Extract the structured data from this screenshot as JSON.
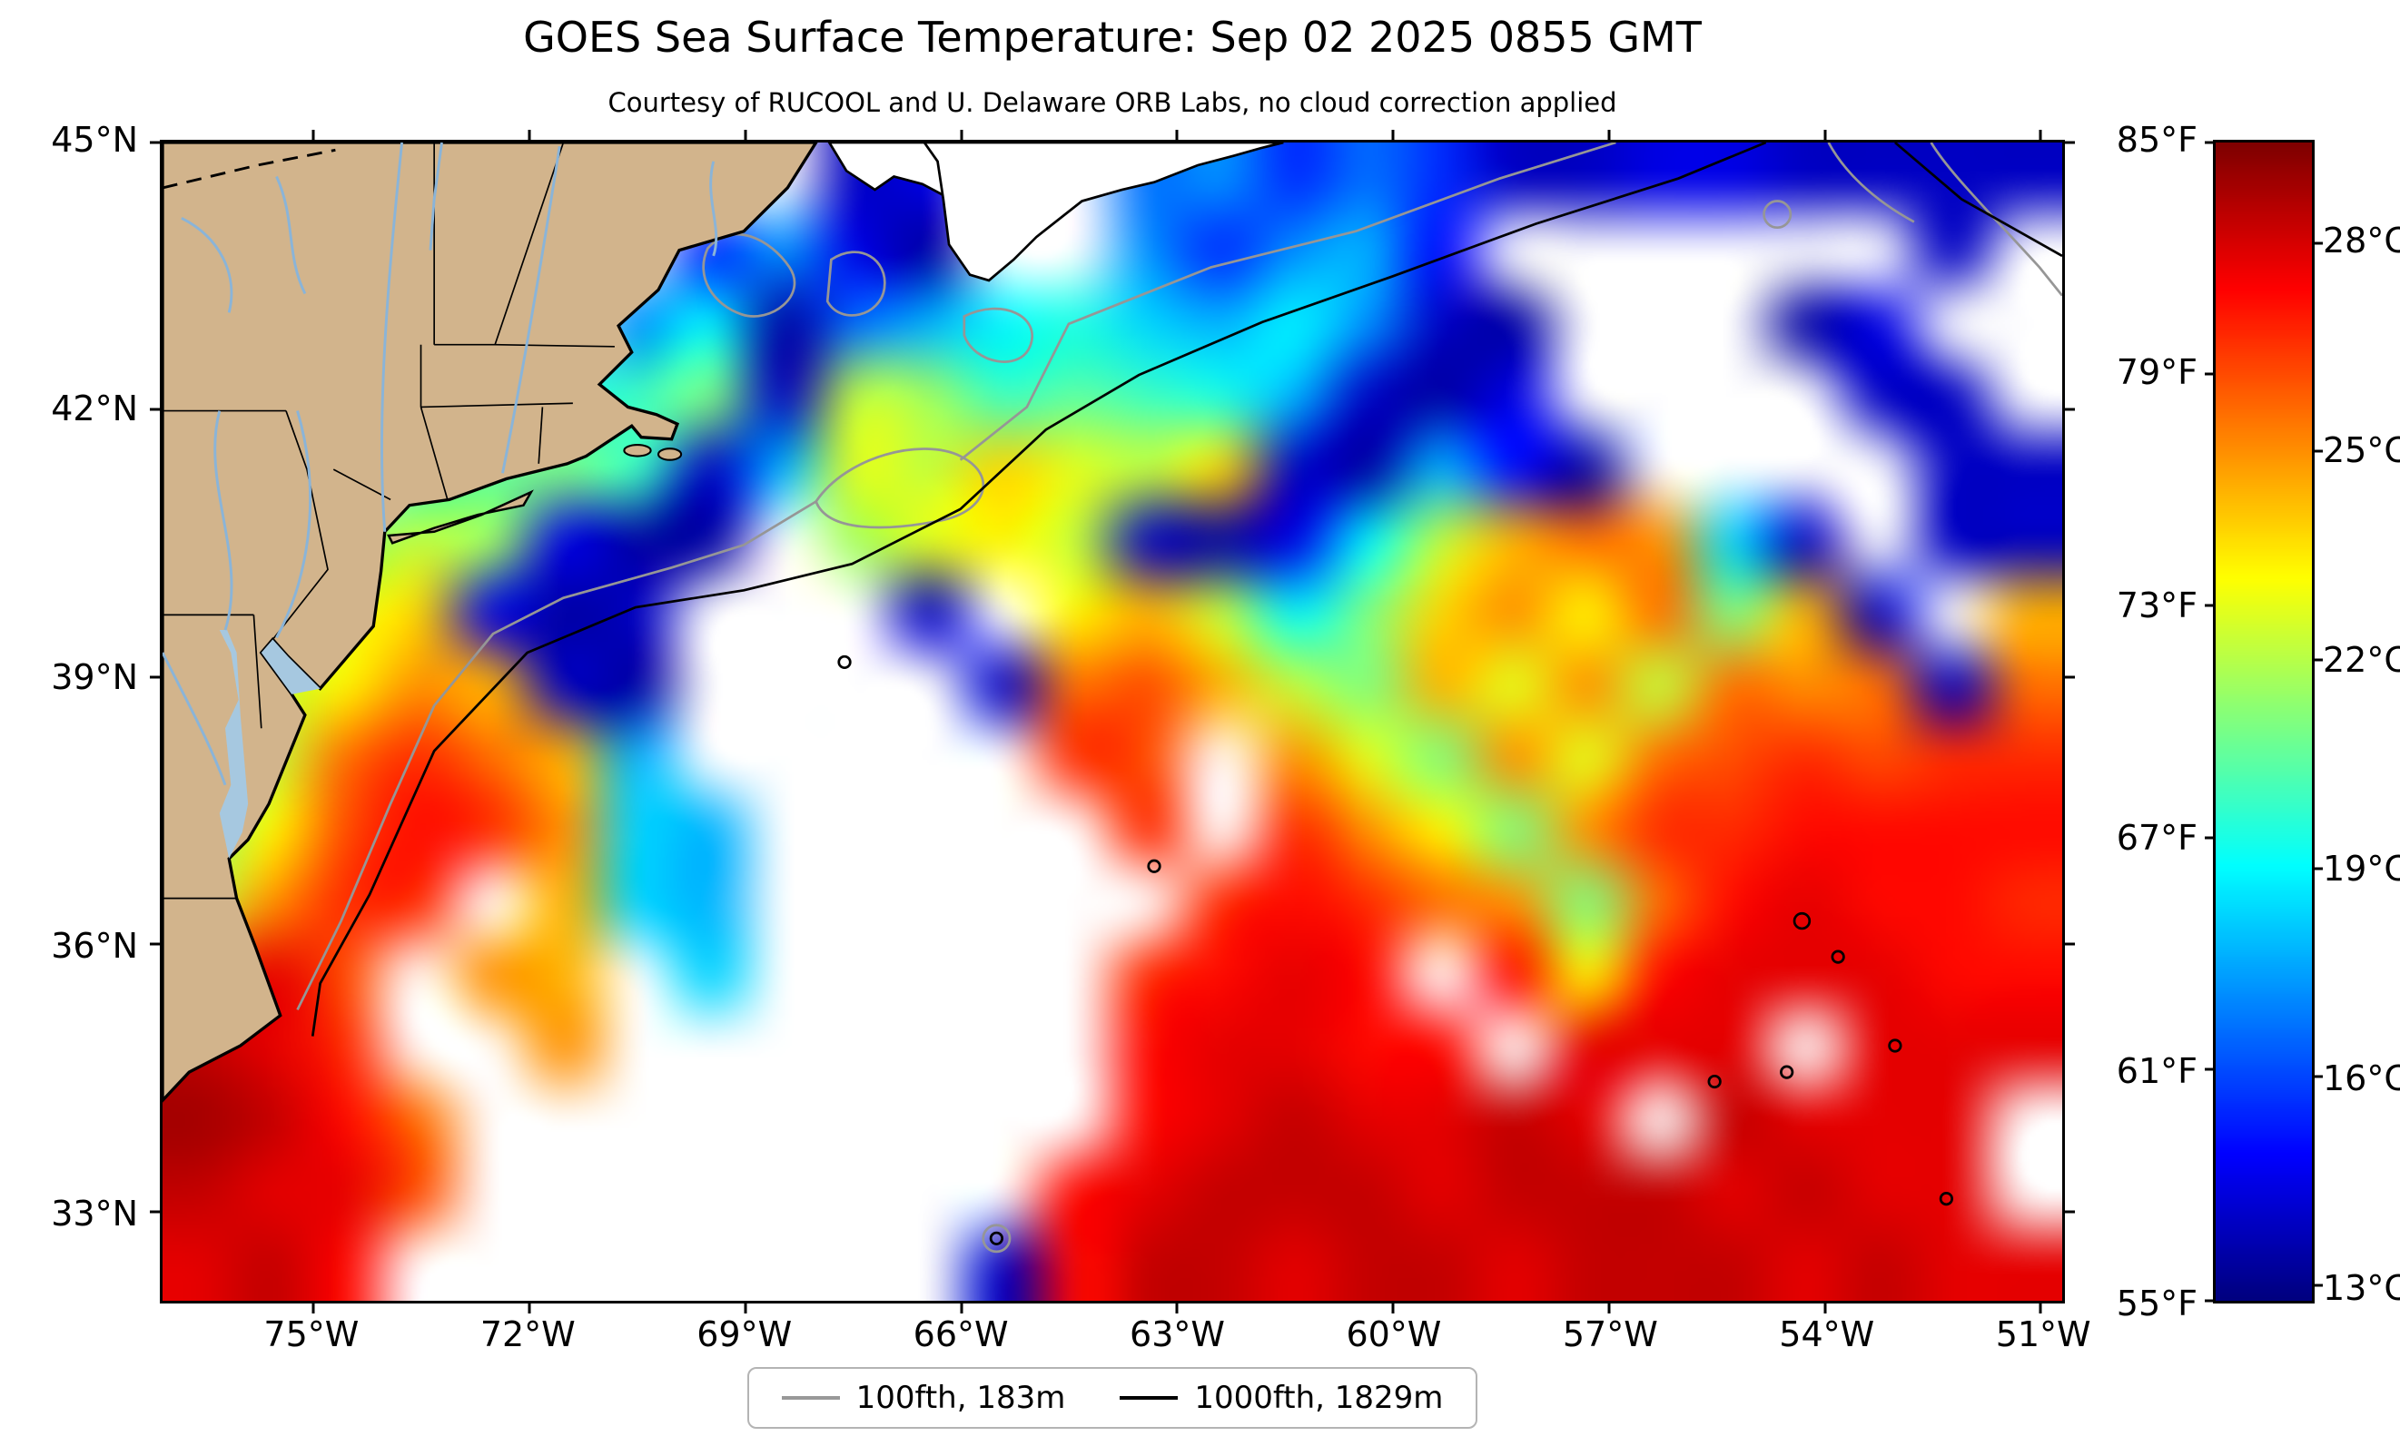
{
  "header": {
    "title": "GOES Sea Surface Temperature: Sep 02 2025 0855 GMT",
    "subtitle": "Courtesy of RUCOOL and U. Delaware ORB Labs, no cloud correction applied"
  },
  "chart_data": {
    "type": "heatmap",
    "title": "GOES Sea Surface Temperature: Sep 02 2025 0855 GMT",
    "subtitle": "Courtesy of RUCOOL and U. Delaware ORB Labs, no cloud correction applied",
    "colormap": "jet",
    "no_data_color": "#ffffff",
    "land_color": "#d2b48c",
    "x_axis": {
      "unit": "°W",
      "left_value": 77.1,
      "right_value": 50.7,
      "ticks": [
        {
          "label": "75°W",
          "value": 75
        },
        {
          "label": "72°W",
          "value": 72
        },
        {
          "label": "69°W",
          "value": 69
        },
        {
          "label": "66°W",
          "value": 66
        },
        {
          "label": "63°W",
          "value": 63
        },
        {
          "label": "60°W",
          "value": 60
        },
        {
          "label": "57°W",
          "value": 57
        },
        {
          "label": "54°W",
          "value": 54
        },
        {
          "label": "51°W",
          "value": 51
        }
      ]
    },
    "y_axis": {
      "unit": "°N",
      "top_value": 45.0,
      "bottom_value": 32.0,
      "ticks": [
        {
          "label": "45°N",
          "value": 45
        },
        {
          "label": "42°N",
          "value": 42
        },
        {
          "label": "39°N",
          "value": 39
        },
        {
          "label": "36°N",
          "value": 36
        },
        {
          "label": "33°N",
          "value": 33
        }
      ]
    },
    "colorbar": {
      "range_f": [
        55,
        85
      ],
      "ticks_f": [
        {
          "label": "85°F",
          "value": 85
        },
        {
          "label": "79°F",
          "value": 79
        },
        {
          "label": "73°F",
          "value": 73
        },
        {
          "label": "67°F",
          "value": 67
        },
        {
          "label": "61°F",
          "value": 61
        },
        {
          "label": "55°F",
          "value": 55
        }
      ],
      "ticks_c": [
        {
          "label": "28°C",
          "value": 28
        },
        {
          "label": "25°C",
          "value": 25
        },
        {
          "label": "22°C",
          "value": 22
        },
        {
          "label": "19°C",
          "value": 19
        },
        {
          "label": "16°C",
          "value": 16
        },
        {
          "label": "13°C",
          "value": 13
        }
      ]
    },
    "legend": [
      {
        "label": "100fth, 183m",
        "color": "#999999"
      },
      {
        "label": "1000fth, 1829m",
        "color": "#000000"
      }
    ],
    "grid": {
      "lon_west": 77.1,
      "lon_east": 50.7,
      "lat_north": 45.0,
      "lat_south": 32.0,
      "units": "F",
      "values": [
        [
          null,
          null,
          null,
          null,
          null,
          null,
          null,
          null,
          null,
          57,
          58,
          null,
          null,
          62,
          63,
          60,
          62,
          60,
          57,
          57,
          58,
          58,
          57,
          57,
          57,
          57
        ],
        [
          null,
          null,
          null,
          null,
          null,
          null,
          null,
          60,
          63,
          58,
          56,
          null,
          null,
          63,
          60,
          63,
          64,
          59,
          null,
          null,
          null,
          null,
          null,
          null,
          57,
          null
        ],
        [
          null,
          null,
          null,
          null,
          null,
          null,
          63,
          66,
          56,
          62,
          64,
          66,
          67,
          65,
          64,
          66,
          63,
          57,
          56,
          null,
          null,
          null,
          56,
          58,
          null,
          null
        ],
        [
          null,
          null,
          null,
          null,
          null,
          67,
          68,
          70,
          57,
          72,
          71,
          68,
          69,
          68,
          67,
          64,
          57,
          56,
          58,
          null,
          null,
          null,
          null,
          57,
          57,
          null
        ],
        [
          null,
          null,
          null,
          68,
          69,
          70,
          68,
          57,
          64,
          73,
          72,
          75,
          73,
          72,
          75,
          57,
          56,
          64,
          59,
          56,
          null,
          null,
          null,
          null,
          57,
          57
        ],
        [
          null,
          null,
          70,
          72,
          71,
          58,
          56,
          56,
          null,
          71,
          73,
          74,
          72,
          57,
          56,
          58,
          66,
          72,
          76,
          78,
          77,
          65,
          57,
          null,
          57,
          57
        ],
        [
          null,
          71,
          73,
          75,
          58,
          56,
          57,
          null,
          null,
          null,
          57,
          null,
          74,
          76,
          72,
          66,
          70,
          75,
          77,
          74,
          78,
          70,
          76,
          57,
          null,
          76
        ],
        [
          null,
          72,
          74,
          77,
          76,
          57,
          56,
          null,
          null,
          null,
          null,
          57,
          78,
          79,
          76,
          72,
          70,
          76,
          73,
          77,
          72,
          78,
          77,
          78,
          57,
          78
        ],
        [
          68,
          72,
          78,
          80,
          78,
          76,
          64,
          null,
          null,
          null,
          null,
          null,
          80,
          79,
          null,
          77,
          73,
          70,
          77,
          73,
          78,
          79,
          80,
          79,
          80,
          80
        ],
        [
          70,
          74,
          79,
          81,
          80,
          77,
          65,
          64,
          null,
          null,
          null,
          null,
          null,
          80,
          null,
          80,
          77,
          74,
          70,
          77,
          80,
          80,
          81,
          81,
          81,
          81
        ],
        [
          72,
          77,
          80,
          80,
          null,
          76,
          65,
          64,
          null,
          null,
          null,
          null,
          null,
          null,
          80,
          81,
          80,
          78,
          77,
          70,
          78,
          81,
          82,
          81,
          81,
          80
        ],
        [
          80,
          82,
          79,
          null,
          77,
          76,
          null,
          65,
          null,
          null,
          null,
          null,
          null,
          80,
          81,
          82,
          81,
          null,
          81,
          74,
          81,
          82,
          82,
          82,
          81,
          81
        ],
        [
          83,
          82,
          80,
          null,
          null,
          77,
          null,
          null,
          null,
          null,
          null,
          null,
          null,
          81,
          82,
          82,
          81,
          81,
          null,
          82,
          82,
          82,
          null,
          82,
          82,
          82
        ],
        [
          84,
          83,
          81,
          78,
          null,
          null,
          null,
          null,
          null,
          null,
          null,
          null,
          null,
          81,
          82,
          83,
          82,
          82,
          83,
          82,
          null,
          83,
          82,
          82,
          82,
          null
        ],
        [
          83,
          82,
          82,
          79,
          null,
          null,
          null,
          null,
          null,
          null,
          null,
          null,
          81,
          82,
          83,
          83,
          83,
          82,
          83,
          83,
          83,
          82,
          83,
          82,
          82,
          null
        ],
        [
          82,
          83,
          81,
          null,
          null,
          null,
          null,
          null,
          null,
          null,
          null,
          57,
          81,
          83,
          83,
          82,
          83,
          83,
          82,
          83,
          83,
          83,
          82,
          83,
          82,
          82
        ]
      ]
    }
  }
}
